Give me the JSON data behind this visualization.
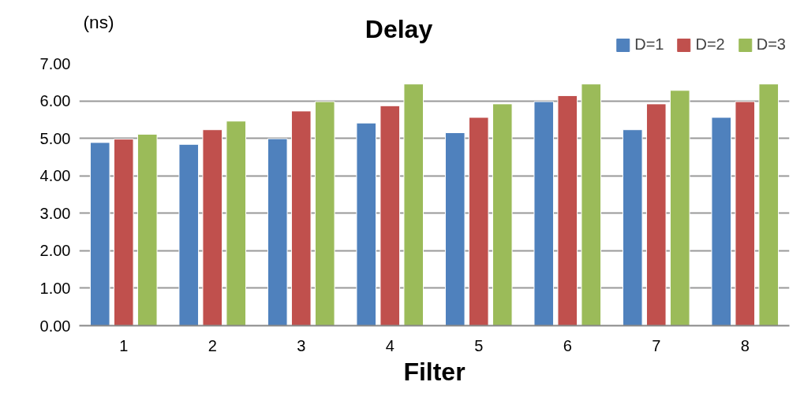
{
  "chart_data": {
    "type": "bar",
    "title": "Delay",
    "ylabel": "(ns)",
    "xlabel": "Filter",
    "categories": [
      "1",
      "2",
      "3",
      "4",
      "5",
      "6",
      "7",
      "8"
    ],
    "series": [
      {
        "name": "D=1",
        "color": "#4f81bd",
        "values": [
          4.89,
          4.84,
          4.99,
          5.41,
          5.15,
          5.98,
          5.23,
          5.56
        ]
      },
      {
        "name": "D=2",
        "color": "#c0504d",
        "values": [
          4.98,
          5.23,
          5.73,
          5.87,
          5.56,
          6.14,
          5.92,
          5.98
        ]
      },
      {
        "name": "D=3",
        "color": "#9bbb59",
        "values": [
          5.11,
          5.46,
          5.98,
          6.45,
          5.92,
          6.45,
          6.28,
          6.45
        ]
      }
    ],
    "ylim": [
      0,
      7
    ],
    "yticks": [
      {
        "value": 0,
        "label": "0.00"
      },
      {
        "value": 1,
        "label": "1.00"
      },
      {
        "value": 2,
        "label": "2.00"
      },
      {
        "value": 3,
        "label": "3.00"
      },
      {
        "value": 4,
        "label": "4.00"
      },
      {
        "value": 5,
        "label": "5.00"
      },
      {
        "value": 6,
        "label": "6.00"
      },
      {
        "value": 7,
        "label": "7.00"
      }
    ],
    "grid": "y",
    "legend": "top right"
  }
}
